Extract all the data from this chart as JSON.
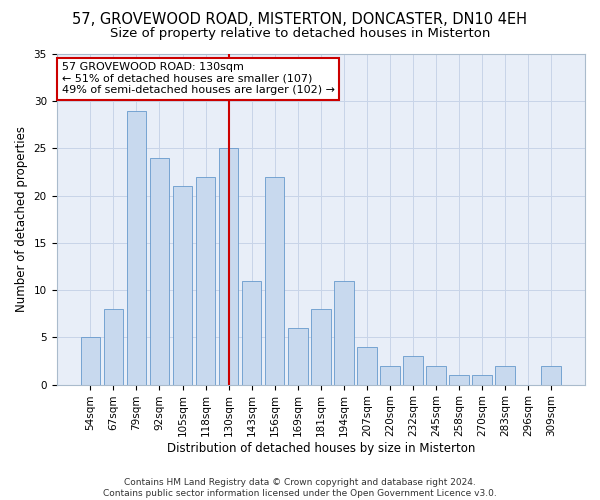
{
  "title": "57, GROVEWOOD ROAD, MISTERTON, DONCASTER, DN10 4EH",
  "subtitle": "Size of property relative to detached houses in Misterton",
  "xlabel": "Distribution of detached houses by size in Misterton",
  "ylabel": "Number of detached properties",
  "categories": [
    "54sqm",
    "67sqm",
    "79sqm",
    "92sqm",
    "105sqm",
    "118sqm",
    "130sqm",
    "143sqm",
    "156sqm",
    "169sqm",
    "181sqm",
    "194sqm",
    "207sqm",
    "220sqm",
    "232sqm",
    "245sqm",
    "258sqm",
    "270sqm",
    "283sqm",
    "296sqm",
    "309sqm"
  ],
  "values": [
    5,
    8,
    29,
    24,
    21,
    22,
    25,
    11,
    22,
    6,
    8,
    11,
    4,
    2,
    3,
    2,
    1,
    1,
    2,
    0,
    2
  ],
  "bar_color": "#c8d9ee",
  "bar_edge_color": "#6699cc",
  "vline_x": 6,
  "vline_color": "#cc0000",
  "annotation_text": "57 GROVEWOOD ROAD: 130sqm\n← 51% of detached houses are smaller (107)\n49% of semi-detached houses are larger (102) →",
  "annotation_box_color": "#ffffff",
  "annotation_box_edge": "#cc0000",
  "ylim": [
    0,
    35
  ],
  "yticks": [
    0,
    5,
    10,
    15,
    20,
    25,
    30,
    35
  ],
  "grid_color": "#c8d4e8",
  "bg_color": "#e8eef8",
  "footnote": "Contains HM Land Registry data © Crown copyright and database right 2024.\nContains public sector information licensed under the Open Government Licence v3.0.",
  "title_fontsize": 10.5,
  "subtitle_fontsize": 9.5,
  "xlabel_fontsize": 8.5,
  "ylabel_fontsize": 8.5,
  "tick_fontsize": 7.5,
  "annotation_fontsize": 8,
  "footnote_fontsize": 6.5
}
